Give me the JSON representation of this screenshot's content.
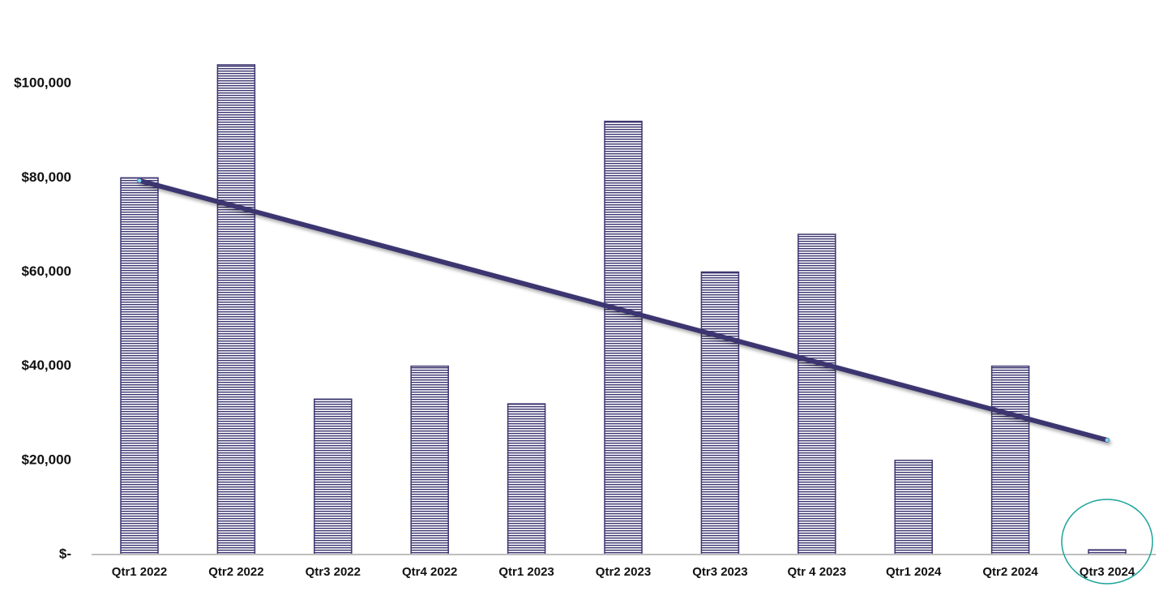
{
  "chart_data": {
    "type": "bar",
    "categories": [
      "Qtr1 2022",
      "Qtr2 2022",
      "Qtr3 2022",
      "Qtr4 2022",
      "Qtr1 2023",
      "Qtr2 2023",
      "Qtr3 2023",
      "Qtr 4 2023",
      "Qtr1 2024",
      "Qtr2 2024",
      "Qtr3 2024"
    ],
    "values": [
      80000,
      104000,
      33000,
      40000,
      32000,
      92000,
      60000,
      68000,
      20000,
      40000,
      1000
    ],
    "color": "#3b3570",
    "ylim": [
      0,
      110000
    ],
    "yticks": [
      {
        "value": 0,
        "label": "$-"
      },
      {
        "value": 20000,
        "label": "$20,000"
      },
      {
        "value": 40000,
        "label": "$40,000"
      },
      {
        "value": 60000,
        "label": "$60,000"
      },
      {
        "value": 80000,
        "label": "$80,000"
      },
      {
        "value": 100000,
        "label": "$100,000"
      }
    ],
    "grid": false,
    "trendline": {
      "color": "#3b3570",
      "values": [
        79400,
        24300
      ]
    }
  }
}
